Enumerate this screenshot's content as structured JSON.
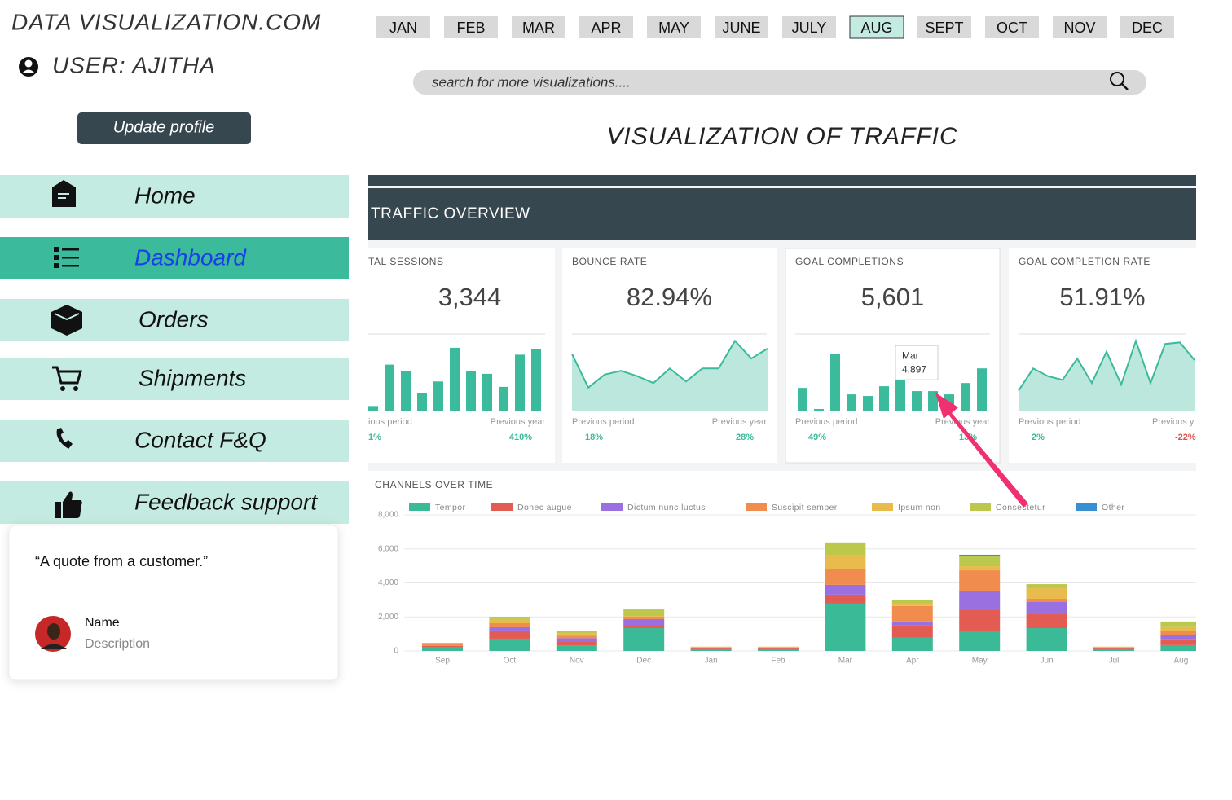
{
  "header": {
    "site_title": "DATA VISUALIZATION.COM",
    "user": "USER: AJITHA",
    "update_button": "Update profile"
  },
  "months": {
    "items": [
      "JAN",
      "FEB",
      "MAR",
      "APR",
      "MAY",
      "JUNE",
      "JULY",
      "AUG",
      "SEPT",
      "OCT",
      "NOV",
      "DEC"
    ],
    "selected": "AUG"
  },
  "search": {
    "placeholder": "search for more visualizations...."
  },
  "page_title": "VISUALIZATION OF TRAFFIC",
  "nav": {
    "items": [
      "Home",
      "Dashboard",
      "Orders",
      "Shipments",
      "Contact F&Q",
      "Feedback support"
    ],
    "active": "Dashboard"
  },
  "testimonial": {
    "quote": "“A quote from a customer.”",
    "name": "Name",
    "description": "Description"
  },
  "dashboard": {
    "title": "TRAFFIC OVERVIEW",
    "kpis": [
      {
        "label": "TAL SESSIONS",
        "value": "3,344",
        "previous_period_label": "ious period",
        "previous_period_value": "1%",
        "previous_year_label": "Previous year",
        "previous_year_value": "410%"
      },
      {
        "label": "BOUNCE RATE",
        "value": "82.94%",
        "previous_period_label": "Previous period",
        "previous_period_value": "18%",
        "previous_year_label": "Previous year",
        "previous_year_value": "28%"
      },
      {
        "label": "GOAL COMPLETIONS",
        "value": "5,601",
        "previous_period_label": "Previous period",
        "previous_period_value": "49%",
        "previous_year_label": "Previous year",
        "previous_year_value": "13%"
      },
      {
        "label": "GOAL COMPLETION RATE",
        "value": "51.91%",
        "previous_period_label": "Previous period",
        "previous_period_value": "2%",
        "previous_year_label": "Previous y",
        "previous_year_value": "-22%"
      }
    ]
  },
  "chart_data": [
    {
      "type": "bar",
      "values": [
        6,
        60,
        52,
        23,
        38,
        82,
        52,
        48,
        31,
        73,
        80
      ],
      "color": "#3bba9c",
      "ylim": [
        0,
        100
      ]
    },
    {
      "type": "area",
      "values": [
        74,
        30,
        47,
        52,
        45,
        36,
        55,
        38,
        55,
        55,
        91,
        68,
        81
      ],
      "color": "#3bba9c",
      "ylim": [
        0,
        100
      ]
    },
    {
      "type": "bar",
      "values": [
        3260,
        230,
        8160,
        2330,
        2100,
        3500,
        4897,
        2800,
        2800,
        2330,
        3960,
        6060
      ],
      "value_labels": [
        null,
        null,
        null,
        null,
        null,
        null,
        "4,897",
        null,
        null,
        null,
        null,
        null
      ],
      "tooltip_category": "Mar",
      "color": "#3bba9c",
      "ylim": [
        0,
        11000
      ]
    },
    {
      "type": "area",
      "values": [
        26,
        55,
        45,
        40,
        68,
        36,
        77,
        34,
        91,
        36,
        87,
        89,
        66
      ],
      "color": "#3bba9c",
      "ylim": [
        0,
        100
      ]
    },
    {
      "type": "stacked_bar",
      "title": "CHANNELS OVER TIME",
      "categories": [
        "Sep",
        "Oct",
        "Nov",
        "Dec",
        "Jan",
        "Feb",
        "Mar",
        "Apr",
        "May",
        "Jun",
        "Jul",
        "Aug"
      ],
      "series": [
        {
          "name": "Tempor",
          "color": "#3bba97",
          "values": [
            200,
            720,
            300,
            1340,
            100,
            100,
            2780,
            770,
            1150,
            1340,
            100,
            340
          ]
        },
        {
          "name": "Donec augue",
          "color": "#e25c53",
          "values": [
            100,
            480,
            250,
            190,
            50,
            50,
            530,
            720,
            1290,
            815,
            50,
            340
          ]
        },
        {
          "name": "Dictum nunc luctus",
          "color": "#9a6fe0",
          "values": [
            0,
            190,
            200,
            340,
            0,
            0,
            575,
            240,
            1100,
            720,
            0,
            240
          ]
        },
        {
          "name": "Suscipit semper",
          "color": "#f08c4e",
          "values": [
            100,
            240,
            150,
            150,
            50,
            50,
            910,
            910,
            1200,
            190,
            50,
            240
          ]
        },
        {
          "name": "Ipsum non",
          "color": "#e8bb4c",
          "values": [
            80,
            240,
            150,
            40,
            50,
            50,
            815,
            140,
            240,
            620,
            50,
            240
          ]
        },
        {
          "name": "Consectetur",
          "color": "#bcc84b",
          "values": [
            0,
            140,
            100,
            380,
            0,
            0,
            770,
            240,
            575,
            240,
            0,
            330
          ]
        },
        {
          "name": "Other",
          "color": "#3a8fd0",
          "values": [
            0,
            0,
            0,
            0,
            0,
            0,
            0,
            0,
            100,
            0,
            0,
            0
          ]
        }
      ],
      "ylim": [
        0,
        8000
      ],
      "yticks": [
        0,
        {
          "value": 2000,
          "label": "2,000"
        },
        {
          "value": 4000,
          "label": "4,000"
        },
        {
          "value": 6000,
          "label": "6,000"
        },
        {
          "value": 8000,
          "label": "8,000"
        }
      ],
      "grid": true
    }
  ]
}
